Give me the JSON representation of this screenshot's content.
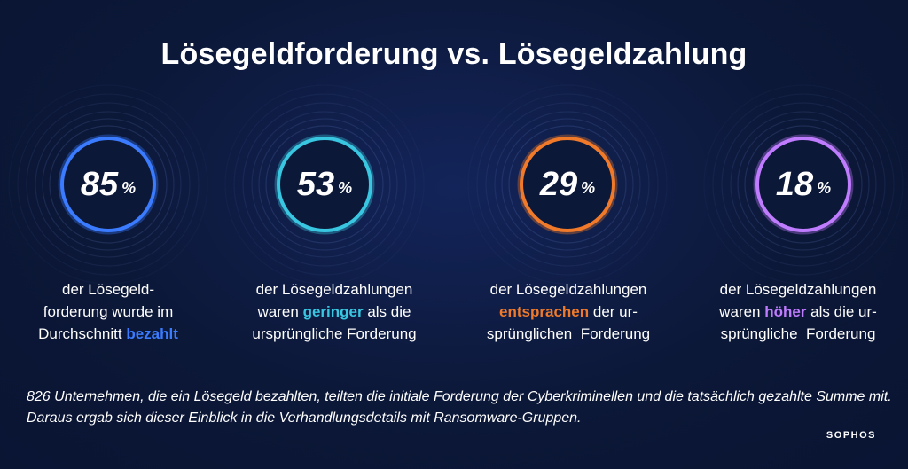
{
  "title": "Lösegeldforderung vs. Lösegeldzahlung",
  "stats": [
    {
      "value": "85",
      "unit": "%",
      "color": "#3a7bff",
      "caption_before": "der Lösegeld-\nforderung wurde im\nDurchschnitt ",
      "highlight": "bezahlt",
      "caption_after": ""
    },
    {
      "value": "53",
      "unit": "%",
      "color": "#38c6e0",
      "caption_before": "der Lösegeldzahlungen\nwaren ",
      "highlight": "geringer",
      "caption_after": " als die\nursprüngliche Forderung"
    },
    {
      "value": "29",
      "unit": "%",
      "color": "#f07a2a",
      "caption_before": "der Lösegeldzahlungen\n",
      "highlight": "entsprachen",
      "caption_after": " der ur-\nsprünglichen  Forderung"
    },
    {
      "value": "18",
      "unit": "%",
      "color": "#c07cff",
      "caption_before": "der Lösegeldzahlungen\nwaren ",
      "highlight": "höher",
      "caption_after": " als die ur-\nsprüngliche  Forderung"
    }
  ],
  "footnote": "826 Unternehmen, die ein Lösegeld bezahlten, teilten die initiale Forderung der Cyberkriminellen und die tatsächlich gezahlte Summe mit. Daraus ergab sich dieser Einblick in die Verhandlungsdetails mit Ransomware-Gruppen.",
  "logo": "SOPHOS"
}
